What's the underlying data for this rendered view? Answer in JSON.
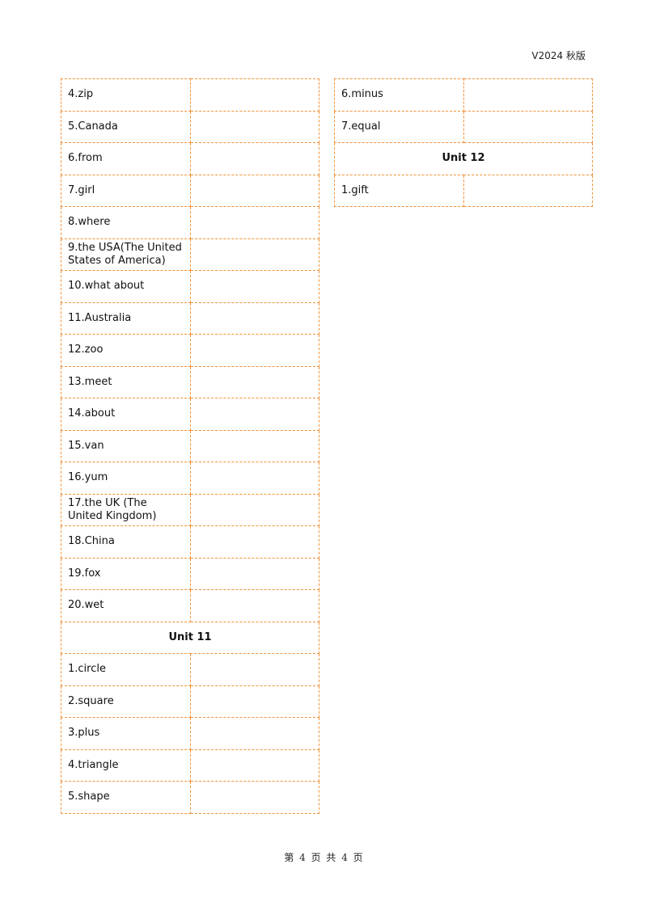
{
  "header": {
    "version": "V2024 秋版"
  },
  "left_table": [
    {
      "type": "word",
      "text": "4.zip"
    },
    {
      "type": "word",
      "text": "5.Canada"
    },
    {
      "type": "word",
      "text": "6.from"
    },
    {
      "type": "word",
      "text": "7.girl"
    },
    {
      "type": "word",
      "text": "8.where"
    },
    {
      "type": "word",
      "text": "9.the USA(The United States of America)"
    },
    {
      "type": "word",
      "text": "10.what about"
    },
    {
      "type": "word",
      "text": "11.Australia"
    },
    {
      "type": "word",
      "text": "12.zoo"
    },
    {
      "type": "word",
      "text": "13.meet"
    },
    {
      "type": "word",
      "text": "14.about"
    },
    {
      "type": "word",
      "text": "15.van"
    },
    {
      "type": "word",
      "text": "16.yum"
    },
    {
      "type": "word",
      "text": "17.the UK (The United Kingdom)"
    },
    {
      "type": "word",
      "text": "18.China"
    },
    {
      "type": "word",
      "text": "19.fox"
    },
    {
      "type": "word",
      "text": "20.wet"
    },
    {
      "type": "unit",
      "text": "Unit 11"
    },
    {
      "type": "word",
      "text": "1.circle"
    },
    {
      "type": "word",
      "text": "2.square"
    },
    {
      "type": "word",
      "text": "3.plus"
    },
    {
      "type": "word",
      "text": "4.triangle"
    },
    {
      "type": "word",
      "text": "5.shape"
    }
  ],
  "right_table": [
    {
      "type": "word",
      "text": "6.minus"
    },
    {
      "type": "word",
      "text": "7.equal"
    },
    {
      "type": "unit",
      "text": "Unit 12"
    },
    {
      "type": "word",
      "text": "1.gift"
    }
  ],
  "footer": {
    "page_info": "第 4 页 共 4 页"
  }
}
